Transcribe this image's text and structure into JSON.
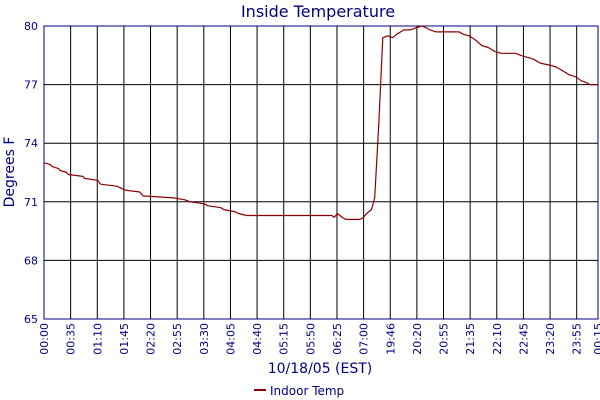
{
  "chart_data": {
    "type": "line",
    "title": "Inside Temperature",
    "xlabel": "10/18/05 (EST)",
    "ylabel": "Degrees F",
    "ylim": [
      65,
      80
    ],
    "yticks": [
      65,
      68,
      71,
      74,
      77,
      80
    ],
    "xticks": [
      "00:00",
      "00:35",
      "01:10",
      "01:45",
      "02:20",
      "02:55",
      "03:30",
      "04:05",
      "04:40",
      "05:15",
      "05:50",
      "06:25",
      "07:00",
      "19:46",
      "20:20",
      "20:55",
      "21:35",
      "22:10",
      "22:45",
      "23:20",
      "23:55",
      "00:15"
    ],
    "grid": true,
    "legend_position": "bottom-center",
    "colors": {
      "series": "#8b0000",
      "axis": "#000080",
      "grid": "#000000"
    },
    "series": [
      {
        "name": "Indoor Temp",
        "points": [
          [
            0.0,
            73.0
          ],
          [
            0.8,
            72.9
          ],
          [
            1.0,
            72.8
          ],
          [
            1.8,
            72.7
          ],
          [
            2.0,
            72.6
          ],
          [
            2.8,
            72.5
          ],
          [
            3.0,
            72.4
          ],
          [
            4.8,
            72.3
          ],
          [
            5.0,
            72.2
          ],
          [
            6.6,
            72.1
          ],
          [
            7.0,
            71.9
          ],
          [
            9.0,
            71.8
          ],
          [
            10.0,
            71.6
          ],
          [
            11.8,
            71.5
          ],
          [
            12.2,
            71.3
          ],
          [
            16.0,
            71.2
          ],
          [
            17.4,
            71.1
          ],
          [
            18.0,
            71.0
          ],
          [
            19.8,
            70.9
          ],
          [
            20.2,
            70.8
          ],
          [
            21.8,
            70.7
          ],
          [
            22.2,
            70.6
          ],
          [
            23.5,
            70.5
          ],
          [
            24.0,
            70.4
          ],
          [
            25.0,
            70.3
          ],
          [
            25.5,
            70.3
          ],
          [
            26.5,
            70.3
          ],
          [
            35.0,
            70.3
          ],
          [
            35.5,
            70.3
          ],
          [
            35.8,
            70.2
          ],
          [
            36.2,
            70.4
          ],
          [
            36.8,
            70.2
          ],
          [
            37.2,
            70.1
          ],
          [
            38.6,
            70.1
          ],
          [
            39.0,
            70.1
          ],
          [
            39.4,
            70.2
          ],
          [
            39.8,
            70.4
          ],
          [
            40.4,
            70.6
          ],
          [
            40.8,
            71.2
          ],
          [
            41.3,
            75.0
          ],
          [
            41.8,
            79.4
          ],
          [
            42.4,
            79.5
          ],
          [
            43.0,
            79.4
          ],
          [
            43.6,
            79.6
          ],
          [
            44.4,
            79.8
          ],
          [
            45.2,
            79.8
          ],
          [
            45.8,
            79.9
          ],
          [
            46.6,
            80.0
          ],
          [
            47.2,
            79.9
          ],
          [
            47.6,
            79.8
          ],
          [
            48.4,
            79.7
          ],
          [
            50.6,
            79.7
          ],
          [
            51.2,
            79.7
          ],
          [
            51.6,
            79.6
          ],
          [
            52.4,
            79.5
          ],
          [
            53.2,
            79.3
          ],
          [
            54.0,
            79.0
          ],
          [
            54.8,
            78.9
          ],
          [
            55.6,
            78.7
          ],
          [
            56.4,
            78.6
          ],
          [
            58.2,
            78.6
          ],
          [
            58.8,
            78.5
          ],
          [
            59.6,
            78.4
          ],
          [
            60.4,
            78.3
          ],
          [
            61.2,
            78.1
          ],
          [
            62.4,
            78.0
          ],
          [
            63.2,
            77.9
          ],
          [
            64.0,
            77.7
          ],
          [
            64.8,
            77.5
          ],
          [
            65.6,
            77.4
          ],
          [
            66.4,
            77.2
          ],
          [
            67.2,
            77.1
          ],
          [
            67.8,
            77.0
          ],
          [
            69.0,
            77.0
          ]
        ]
      }
    ]
  }
}
